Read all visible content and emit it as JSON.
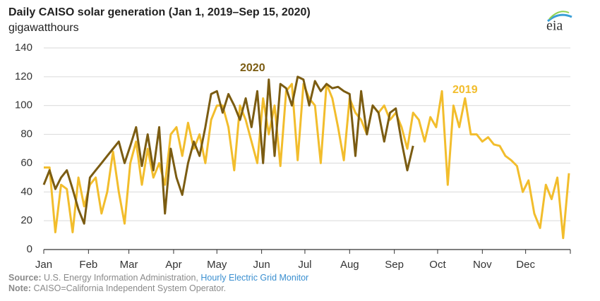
{
  "chart_data": {
    "type": "line",
    "title": "Daily CAISO solar generation (Jan 1, 2019–Sep 15, 2020)",
    "subtitle": "gigawatthours",
    "logo": "eia",
    "source_label": "Source:",
    "source_text": "U.S. Energy Information Administration,",
    "source_link": "Hourly Electric Grid Monitor",
    "note_label": "Note:",
    "note_text": "CAISO=California Independent System Operator.",
    "xlim": [
      1,
      366
    ],
    "xticks": [
      {
        "value": 1,
        "label": "Jan"
      },
      {
        "value": 32,
        "label": "Feb"
      },
      {
        "value": 60,
        "label": "Mar"
      },
      {
        "value": 91,
        "label": "Apr"
      },
      {
        "value": 121,
        "label": "May"
      },
      {
        "value": 152,
        "label": "Jun"
      },
      {
        "value": 182,
        "label": "Jul"
      },
      {
        "value": 213,
        "label": "Aug"
      },
      {
        "value": 244,
        "label": "Sep"
      },
      {
        "value": 274,
        "label": "Oct"
      },
      {
        "value": 305,
        "label": "Nov"
      },
      {
        "value": 335,
        "label": "Dec"
      }
    ],
    "ylim": [
      0,
      140
    ],
    "yticks": [
      0,
      20,
      40,
      60,
      80,
      100,
      120,
      140
    ],
    "grid": true,
    "series": [
      {
        "name": "2019",
        "color": "#f2bd2c",
        "x": [
          1,
          5,
          9,
          13,
          17,
          21,
          25,
          29,
          33,
          37,
          41,
          45,
          49,
          53,
          57,
          61,
          65,
          69,
          73,
          77,
          81,
          85,
          89,
          93,
          97,
          101,
          105,
          109,
          113,
          117,
          121,
          125,
          129,
          133,
          137,
          141,
          145,
          149,
          153,
          157,
          161,
          165,
          169,
          173,
          177,
          181,
          185,
          189,
          193,
          197,
          201,
          205,
          209,
          213,
          217,
          221,
          225,
          229,
          233,
          237,
          241,
          245,
          249,
          253,
          257,
          261,
          265,
          269,
          273,
          277,
          281,
          285,
          289,
          293,
          297,
          301,
          305,
          309,
          313,
          317,
          321,
          325,
          329,
          333,
          337,
          341,
          345,
          349,
          353,
          357,
          361,
          365
        ],
        "values": [
          57,
          57,
          12,
          45,
          42,
          12,
          50,
          30,
          45,
          50,
          25,
          40,
          68,
          40,
          18,
          60,
          75,
          45,
          70,
          50,
          60,
          45,
          80,
          85,
          65,
          88,
          70,
          80,
          60,
          90,
          100,
          100,
          85,
          55,
          100,
          90,
          75,
          60,
          105,
          80,
          100,
          58,
          110,
          115,
          62,
          115,
          105,
          100,
          60,
          115,
          105,
          85,
          62,
          105,
          95,
          90,
          80,
          100,
          95,
          100,
          90,
          95,
          85,
          70,
          95,
          90,
          75,
          92,
          85,
          110,
          45,
          100,
          85,
          105,
          80,
          80,
          75,
          78,
          73,
          72,
          65,
          62,
          58,
          40,
          48,
          25,
          15,
          45,
          35,
          50,
          8,
          53
        ]
      },
      {
        "name": "2020",
        "color": "#7b5c12",
        "x": [
          1,
          5,
          9,
          13,
          17,
          21,
          25,
          29,
          33,
          37,
          41,
          45,
          49,
          53,
          57,
          61,
          65,
          69,
          73,
          77,
          81,
          85,
          89,
          93,
          97,
          101,
          105,
          109,
          113,
          117,
          121,
          125,
          129,
          133,
          137,
          141,
          145,
          149,
          153,
          157,
          161,
          165,
          169,
          173,
          177,
          181,
          185,
          189,
          193,
          197,
          201,
          205,
          209,
          213,
          217,
          221,
          225,
          229,
          233,
          237,
          241,
          245,
          249,
          253,
          257
        ],
        "values": [
          45,
          55,
          42,
          50,
          55,
          42,
          28,
          18,
          50,
          55,
          60,
          65,
          70,
          75,
          60,
          72,
          85,
          58,
          80,
          55,
          85,
          25,
          70,
          50,
          38,
          60,
          75,
          65,
          85,
          108,
          110,
          95,
          108,
          100,
          90,
          105,
          85,
          110,
          60,
          118,
          65,
          115,
          112,
          100,
          120,
          118,
          100,
          117,
          110,
          115,
          112,
          113,
          110,
          108,
          65,
          110,
          80,
          100,
          95,
          75,
          95,
          98,
          75,
          55,
          72
        ]
      }
    ]
  }
}
